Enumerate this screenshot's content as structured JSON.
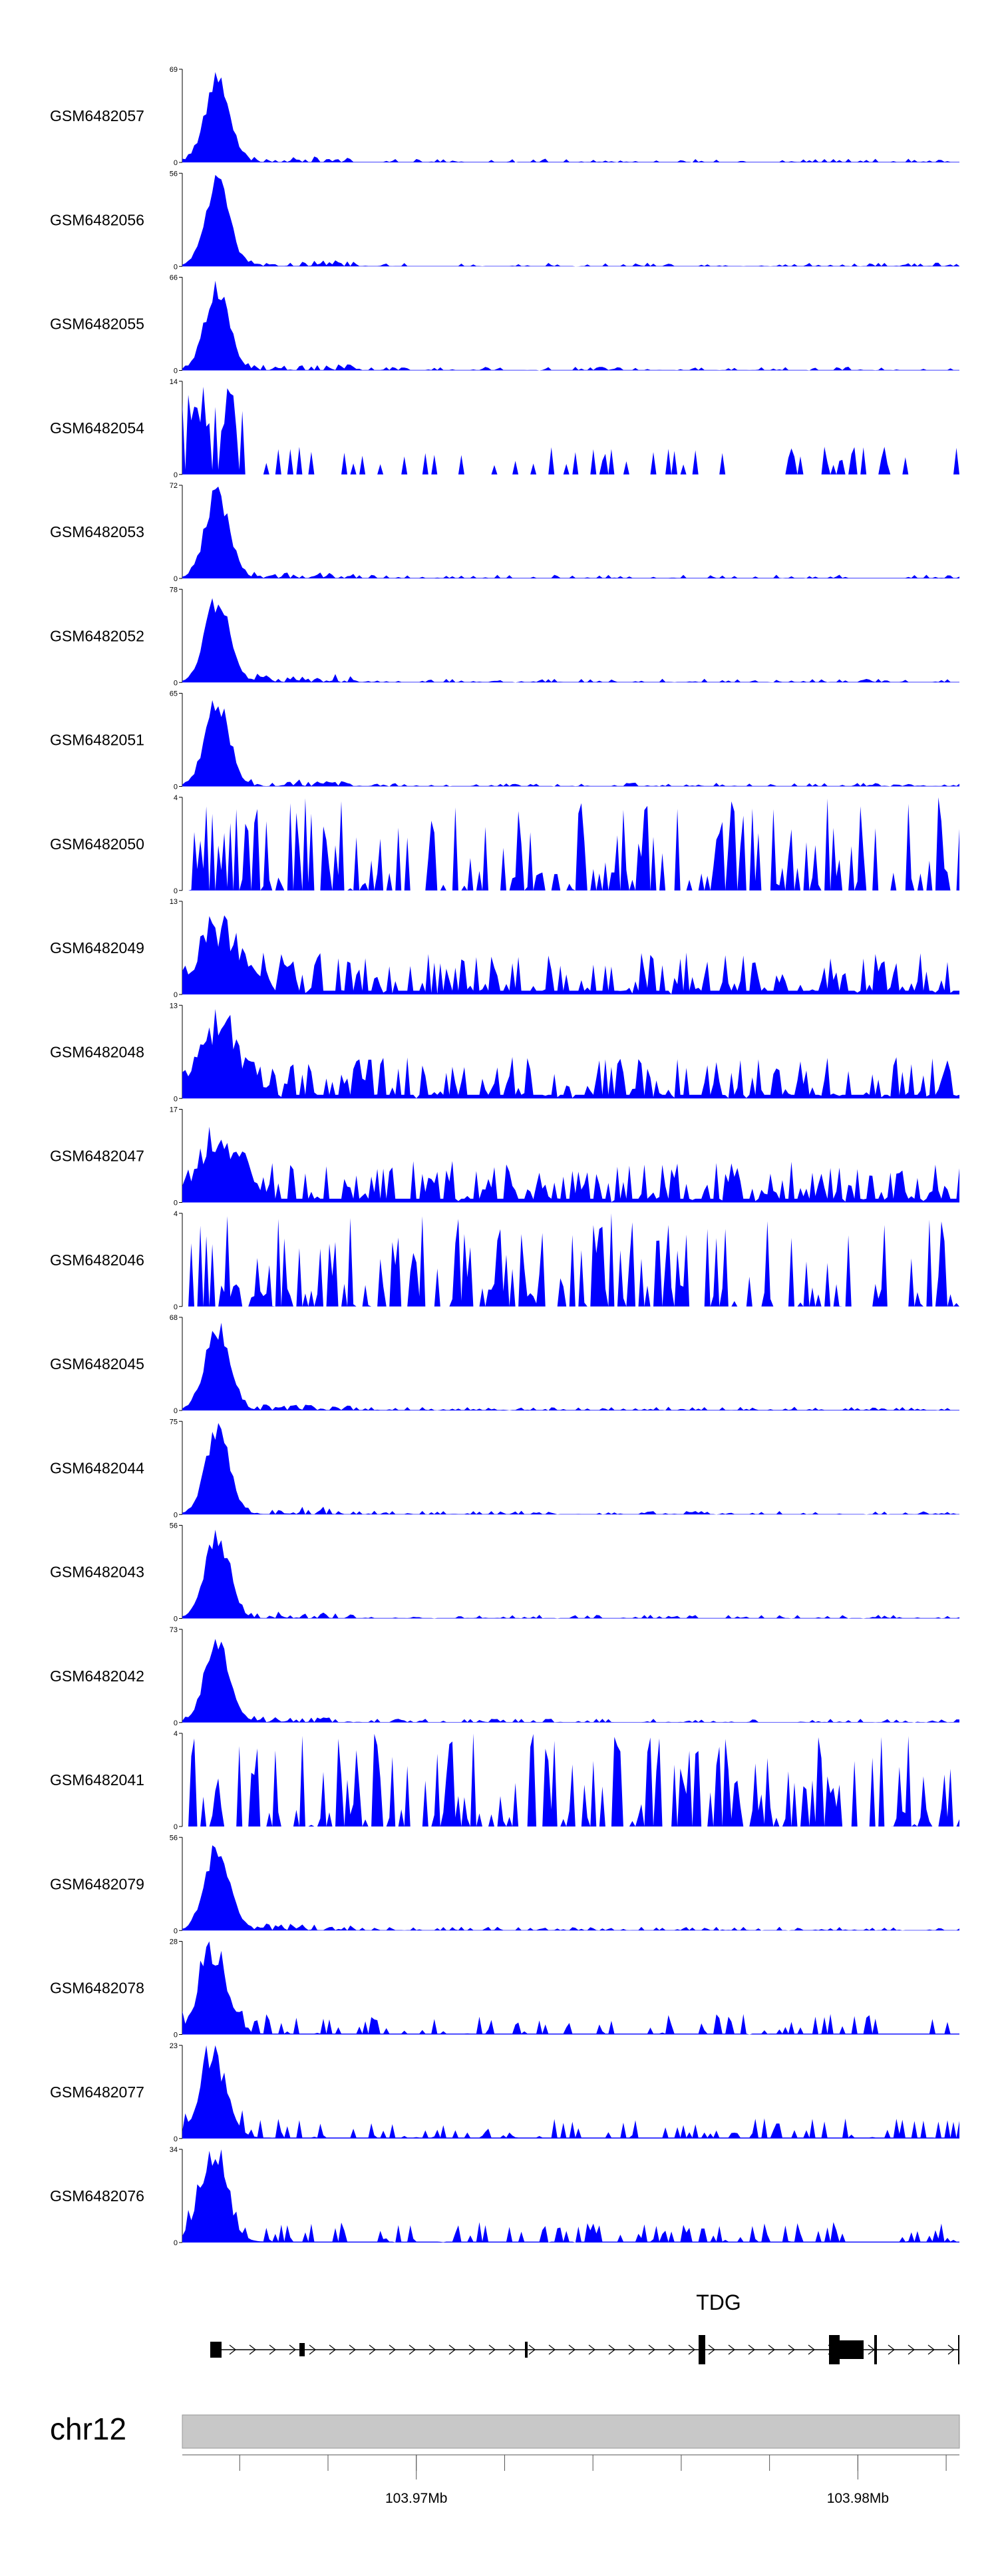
{
  "chart_data": {
    "type": "area",
    "region": {
      "chromosome": "chr12",
      "start_mb": 103.9647,
      "end_mb": 103.9823
    },
    "colors": {
      "signal": "#0000ff",
      "gene": "#000000",
      "ideogram": "#c8c8c8"
    },
    "tracks": [
      {
        "name": "GSM6482057",
        "ymax": 69,
        "pattern": "peak"
      },
      {
        "name": "GSM6482056",
        "ymax": 56,
        "pattern": "peak"
      },
      {
        "name": "GSM6482055",
        "ymax": 66,
        "pattern": "peak"
      },
      {
        "name": "GSM6482054",
        "ymax": 14,
        "pattern": "sparse"
      },
      {
        "name": "GSM6482053",
        "ymax": 72,
        "pattern": "peak"
      },
      {
        "name": "GSM6482052",
        "ymax": 78,
        "pattern": "peak"
      },
      {
        "name": "GSM6482051",
        "ymax": 65,
        "pattern": "peak"
      },
      {
        "name": "GSM6482050",
        "ymax": 4,
        "pattern": "noise"
      },
      {
        "name": "GSM6482049",
        "ymax": 13,
        "pattern": "dense"
      },
      {
        "name": "GSM6482048",
        "ymax": 13,
        "pattern": "dense"
      },
      {
        "name": "GSM6482047",
        "ymax": 17,
        "pattern": "dense"
      },
      {
        "name": "GSM6482046",
        "ymax": 4,
        "pattern": "noise"
      },
      {
        "name": "GSM6482045",
        "ymax": 68,
        "pattern": "peak"
      },
      {
        "name": "GSM6482044",
        "ymax": 75,
        "pattern": "peak"
      },
      {
        "name": "GSM6482043",
        "ymax": 56,
        "pattern": "peak"
      },
      {
        "name": "GSM6482042",
        "ymax": 73,
        "pattern": "peak"
      },
      {
        "name": "GSM6482041",
        "ymax": 4,
        "pattern": "noise"
      },
      {
        "name": "GSM6482079",
        "ymax": 56,
        "pattern": "peak"
      },
      {
        "name": "GSM6482078",
        "ymax": 28,
        "pattern": "medium"
      },
      {
        "name": "GSM6482077",
        "ymax": 23,
        "pattern": "medium"
      },
      {
        "name": "GSM6482076",
        "ymax": 34,
        "pattern": "medium"
      }
    ],
    "gene": {
      "name": "TDG",
      "strand": "+"
    },
    "xaxis": {
      "tick_labels": [
        "103.97Mb",
        "103.98Mb"
      ],
      "tick_values": [
        103.97,
        103.98
      ]
    },
    "legend": "none",
    "grid": false
  }
}
